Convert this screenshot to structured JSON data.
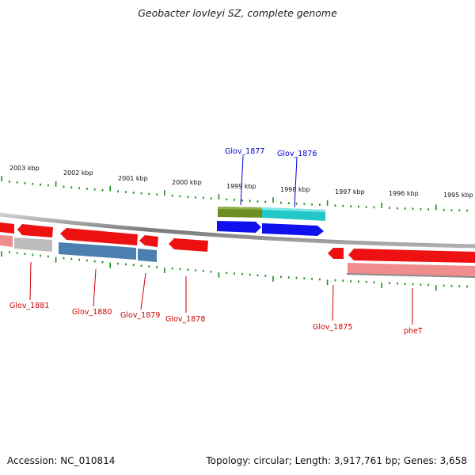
{
  "title": "Geobacter lovleyi SZ, complete genome",
  "accession_text": "Accession: NC_010814",
  "topology_text": "Topology: circular; Length: 3,917,761 bp; Genes: 3,658",
  "colors": {
    "tick": "#1f8f1f",
    "backbone": "#8a8a8a",
    "cds_forward": "#ee1111",
    "cds_light": "#f08c8c",
    "gene_gray": "#bdbdbd",
    "gene_steelblue": "#4a7fb0",
    "gene_olive": "#6b8e23",
    "gene_cyan": "#22c8c8",
    "gene_blue": "#1010ee",
    "label_red": "#cc0000",
    "label_blue": "#0000cc"
  },
  "scale_labels": [
    "2003 kbp",
    "2002 kbp",
    "2001 kbp",
    "2000 kbp",
    "1999 kbp",
    "1998 kbp",
    "1997 kbp",
    "1996 kbp",
    "1995 kbp"
  ],
  "genes_forward_labels": [
    "Glov_1881",
    "Glov_1880",
    "Glov_1879",
    "Glov_1878",
    "Glov_1875",
    "pheT"
  ],
  "genes_blue_labels": [
    "Glov_1877",
    "Glov_1876"
  ]
}
